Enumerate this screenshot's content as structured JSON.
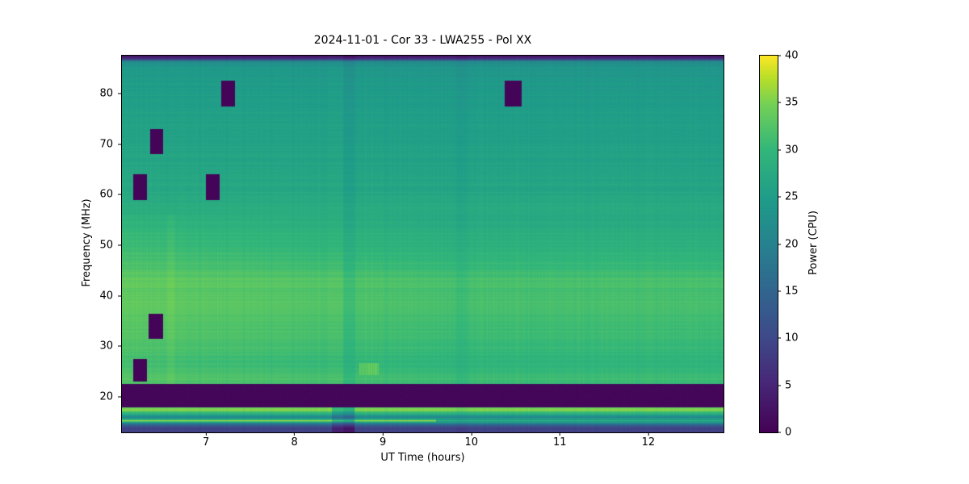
{
  "chart_data": {
    "type": "heatmap",
    "title": "2024-11-01 - Cor 33 - LWA255 - Pol XX",
    "xlabel": "UT Time (hours)",
    "ylabel": "Frequency (MHz)",
    "colorbar_label": "Power (CPU)",
    "colormap": "viridis",
    "x_range": [
      6.05,
      12.85
    ],
    "y_range": [
      13.0,
      87.5
    ],
    "x_ticks": [
      7,
      8,
      9,
      10,
      11,
      12
    ],
    "y_ticks": [
      20,
      30,
      40,
      50,
      60,
      70,
      80
    ],
    "colorbar_range": [
      0,
      40
    ],
    "colorbar_ticks": [
      0,
      5,
      10,
      15,
      20,
      25,
      30,
      35,
      40
    ],
    "frequency_power_profile": [
      [
        13.0,
        6
      ],
      [
        13.3,
        11
      ],
      [
        13.6,
        8
      ],
      [
        14.0,
        10
      ],
      [
        14.4,
        14
      ],
      [
        14.7,
        18
      ],
      [
        15.0,
        26
      ],
      [
        15.3,
        37
      ],
      [
        15.6,
        26
      ],
      [
        16.0,
        20
      ],
      [
        16.5,
        27
      ],
      [
        17.0,
        31
      ],
      [
        17.4,
        36
      ],
      [
        17.8,
        34
      ],
      [
        18.0,
        33
      ],
      [
        22.6,
        31
      ],
      [
        23.5,
        31.5
      ],
      [
        25,
        30.5
      ],
      [
        27,
        30
      ],
      [
        29,
        30.5
      ],
      [
        31,
        31
      ],
      [
        33,
        31.5
      ],
      [
        35,
        31.5
      ],
      [
        37,
        32
      ],
      [
        39,
        32.2
      ],
      [
        41,
        32
      ],
      [
        43,
        32.3
      ],
      [
        44,
        31.8
      ],
      [
        45,
        31
      ],
      [
        47,
        30.5
      ],
      [
        50,
        29.5
      ],
      [
        52,
        29
      ],
      [
        55,
        28
      ],
      [
        58,
        27.5
      ],
      [
        60,
        27
      ],
      [
        63,
        26.5
      ],
      [
        66,
        26.2
      ],
      [
        70,
        26
      ],
      [
        74,
        25.5
      ],
      [
        78,
        25
      ],
      [
        82,
        24.5
      ],
      [
        85,
        24
      ],
      [
        86.3,
        22
      ],
      [
        86.8,
        8
      ],
      [
        87.5,
        1
      ]
    ],
    "rfi_flagged_band": {
      "f_low": 18.0,
      "f_high": 22.6,
      "power": 0.5
    },
    "flagged_blocks": [
      {
        "t0": 7.17,
        "t1": 7.33,
        "f0": 77.5,
        "f1": 82.5
      },
      {
        "t0": 10.38,
        "t1": 10.57,
        "f0": 77.5,
        "f1": 82.5
      },
      {
        "t0": 6.37,
        "t1": 6.52,
        "f0": 68.0,
        "f1": 73.0
      },
      {
        "t0": 6.18,
        "t1": 6.33,
        "f0": 59.0,
        "f1": 64.0
      },
      {
        "t0": 7.0,
        "t1": 7.15,
        "f0": 59.0,
        "f1": 64.0
      },
      {
        "t0": 6.35,
        "t1": 6.52,
        "f0": 31.5,
        "f1": 36.5
      },
      {
        "t0": 6.18,
        "t1": 6.33,
        "f0": 23.0,
        "f1": 27.5
      }
    ],
    "flagged_power": 0.4,
    "bright_patch": {
      "t0": 8.73,
      "t1": 8.95,
      "f0": 24.3,
      "f1": 26.7,
      "power": 34.5
    },
    "time_gradient": {
      "amplitude": 1.5,
      "t_center": 8.8,
      "t_scale": 2.9,
      "min_clamp": -0.33,
      "full_band": [
        22.6,
        56
      ],
      "reduced_factor": 0.35
    },
    "vertical_stripes": [
      {
        "t": 8.55,
        "width": 0.25,
        "delta": -5.0,
        "f_low": 13.0,
        "f_high": 18.0
      },
      {
        "t": 8.62,
        "width": 0.14,
        "delta": -1.2,
        "f_low": 13.0,
        "f_high": 87.5
      },
      {
        "t": 9.9,
        "width": 0.12,
        "delta": -0.8,
        "f_low": 13.0,
        "f_high": 87.5
      },
      {
        "t": 6.6,
        "width": 0.1,
        "delta": 0.8,
        "f_low": 22.6,
        "f_high": 56.0
      }
    ],
    "bright_line_fade": {
      "f_low": 15.1,
      "f_high": 15.5,
      "t_start": 9.6,
      "delta": -7
    }
  }
}
